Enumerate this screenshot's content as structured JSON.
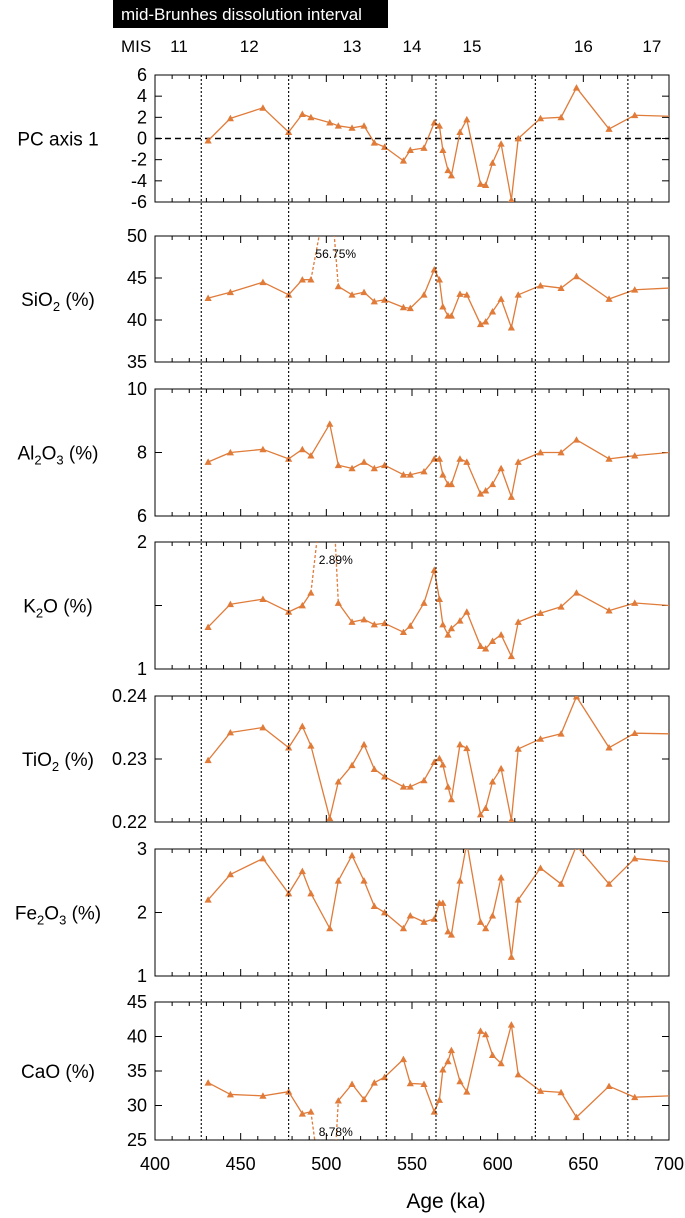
{
  "chart_data": {
    "type": "line",
    "banner": "mid-Brunhes dissolution interval",
    "mis": {
      "title": "MIS",
      "labels": [
        {
          "label": "11",
          "x": 414
        },
        {
          "label": "12",
          "x": 455
        },
        {
          "label": "13",
          "x": 515
        },
        {
          "label": "14",
          "x": 550
        },
        {
          "label": "15",
          "x": 585
        },
        {
          "label": "16",
          "x": 650
        },
        {
          "label": "17",
          "x": 690
        }
      ],
      "boundaries": [
        427,
        478,
        535,
        564,
        622,
        676
      ]
    },
    "x_axis": {
      "label": "Age (ka)",
      "range": [
        400,
        700
      ],
      "ticks": [
        400,
        450,
        500,
        550,
        600,
        650,
        700
      ],
      "minor_step": 10
    },
    "ages": [
      431,
      444,
      463,
      478,
      486,
      491,
      502,
      507,
      515,
      522,
      528,
      534,
      545,
      549,
      557,
      563,
      566,
      568,
      571,
      573,
      578,
      582,
      590,
      593,
      597,
      602,
      608,
      612,
      625,
      637,
      646,
      665,
      680,
      700
    ],
    "panels": [
      {
        "label_parts": [
          [
            "PC axis 1",
            false
          ]
        ],
        "ylim": [
          -6,
          6
        ],
        "ticks": [
          -6,
          -4,
          -2,
          0,
          2,
          4,
          6
        ],
        "tick_labels": [
          "-6",
          "-4",
          "-2",
          "0",
          "2",
          "4",
          "6"
        ],
        "zero_line": true,
        "values": [
          -0.2,
          1.9,
          2.9,
          0.6,
          2.3,
          2.0,
          1.5,
          1.2,
          1.0,
          1.2,
          -0.4,
          -0.8,
          -2.1,
          -1.1,
          -0.9,
          1.5,
          1.2,
          -1.1,
          -3.0,
          -3.5,
          0.6,
          1.8,
          -4.3,
          -4.4,
          -2.3,
          -0.5,
          -5.8,
          0.0,
          1.9,
          2.0,
          4.8,
          0.9,
          2.2,
          2.1
        ]
      },
      {
        "label_parts": [
          [
            "SiO",
            false
          ],
          [
            "2",
            true
          ],
          [
            " (%)",
            false
          ]
        ],
        "ylim": [
          35,
          50
        ],
        "ticks": [
          35,
          40,
          45,
          50
        ],
        "tick_labels": [
          "35",
          "40",
          "45",
          "50"
        ],
        "values": [
          42.6,
          43.3,
          44.5,
          43.0,
          44.8,
          44.8,
          56.75,
          44.0,
          43.0,
          43.3,
          42.2,
          42.4,
          41.5,
          41.4,
          43.0,
          46.0,
          44.8,
          41.6,
          40.5,
          40.5,
          43.1,
          43.0,
          39.5,
          39.8,
          41.0,
          42.5,
          39.1,
          43.0,
          44.1,
          43.8,
          45.2,
          42.5,
          43.6,
          43.8
        ],
        "annotation": {
          "text": "56.75%",
          "index": 6
        }
      },
      {
        "label_parts": [
          [
            "Al",
            false
          ],
          [
            "2",
            true
          ],
          [
            "O",
            false
          ],
          [
            "3",
            true
          ],
          [
            " (%)",
            false
          ]
        ],
        "ylim": [
          6,
          10
        ],
        "ticks": [
          6,
          8,
          10
        ],
        "tick_labels": [
          "6",
          "8",
          "10"
        ],
        "values": [
          7.7,
          8.0,
          8.1,
          7.8,
          8.1,
          7.9,
          8.9,
          7.6,
          7.5,
          7.7,
          7.5,
          7.6,
          7.3,
          7.3,
          7.4,
          7.8,
          7.8,
          7.3,
          7.0,
          7.0,
          7.8,
          7.7,
          6.7,
          6.8,
          7.0,
          7.5,
          6.6,
          7.7,
          8.0,
          8.0,
          8.4,
          7.8,
          7.9,
          8.0
        ]
      },
      {
        "label_parts": [
          [
            "K",
            false
          ],
          [
            "2",
            true
          ],
          [
            "O (%)",
            false
          ]
        ],
        "ylim": [
          1,
          2
        ],
        "ticks": [
          1,
          1.5,
          2
        ],
        "tick_labels": [
          "1",
          "",
          "2"
        ],
        "values": [
          1.33,
          1.51,
          1.55,
          1.45,
          1.5,
          1.6,
          2.89,
          1.52,
          1.37,
          1.39,
          1.35,
          1.36,
          1.29,
          1.34,
          1.52,
          1.78,
          1.55,
          1.35,
          1.27,
          1.32,
          1.38,
          1.45,
          1.18,
          1.16,
          1.22,
          1.27,
          1.1,
          1.37,
          1.44,
          1.49,
          1.6,
          1.46,
          1.52,
          1.5
        ],
        "annotation": {
          "text": "2.89%",
          "index": 6
        }
      },
      {
        "label_parts": [
          [
            "TiO",
            false
          ],
          [
            "2",
            true
          ],
          [
            " (%)",
            false
          ]
        ],
        "ylim": [
          0.22,
          0.24
        ],
        "ticks": [
          0.22,
          0.23,
          0.24
        ],
        "tick_labels": [
          "0.22",
          "0.23",
          "0.24"
        ],
        "values": [
          0.2298,
          0.2342,
          0.235,
          0.2318,
          0.2352,
          0.2321,
          0.2206,
          0.2264,
          0.229,
          0.2323,
          0.2284,
          0.2272,
          0.2256,
          0.2256,
          0.2266,
          0.2295,
          0.2301,
          0.2291,
          0.2256,
          0.2236,
          0.2323,
          0.2317,
          0.2212,
          0.2222,
          0.2264,
          0.2285,
          0.2203,
          0.2316,
          0.2332,
          0.234,
          0.2399,
          0.2318,
          0.2341,
          0.234
        ]
      },
      {
        "label_parts": [
          [
            "Fe",
            false
          ],
          [
            "2",
            true
          ],
          [
            "O",
            false
          ],
          [
            "3",
            true
          ],
          [
            " (%)",
            false
          ]
        ],
        "ylim": [
          1,
          3
        ],
        "ticks": [
          1,
          2,
          3
        ],
        "tick_labels": [
          "1",
          "2",
          "3"
        ],
        "values": [
          2.2,
          2.6,
          2.85,
          2.3,
          2.65,
          2.3,
          1.75,
          2.5,
          2.9,
          2.5,
          2.1,
          2.0,
          1.75,
          1.95,
          1.85,
          1.9,
          2.15,
          2.15,
          1.7,
          1.65,
          2.5,
          3.1,
          1.85,
          1.75,
          1.95,
          2.55,
          1.3,
          2.2,
          2.7,
          2.45,
          3.05,
          2.45,
          2.85,
          2.8
        ]
      },
      {
        "label_parts": [
          [
            "CaO (%)",
            false
          ]
        ],
        "ylim": [
          25,
          45
        ],
        "ticks": [
          25,
          30,
          35,
          40,
          45
        ],
        "tick_labels": [
          "25",
          "30",
          "35",
          "40",
          "45"
        ],
        "values": [
          33.3,
          31.6,
          31.4,
          32.0,
          28.8,
          29.1,
          8.78,
          30.7,
          33.1,
          30.9,
          33.3,
          34.1,
          36.7,
          33.2,
          33.1,
          29.1,
          30.8,
          35.2,
          36.4,
          38.0,
          33.5,
          32.0,
          40.8,
          40.3,
          37.3,
          36.1,
          41.7,
          34.5,
          32.1,
          31.9,
          28.3,
          32.8,
          31.2,
          31.4
        ],
        "annotation": {
          "text": "8.78%",
          "index": 6
        }
      }
    ]
  },
  "colors": {
    "series": "#e07b39",
    "axis": "#000000",
    "banner_bg": "#000000",
    "banner_text": "#ffffff"
  }
}
